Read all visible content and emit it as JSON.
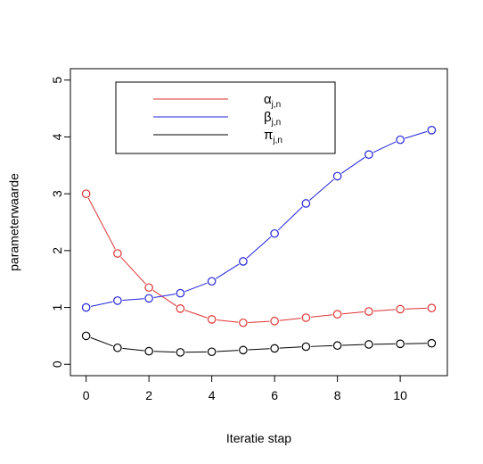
{
  "chart_data": {
    "type": "line",
    "xlabel": "Iteratie stap",
    "ylabel": "parameterwaarde",
    "xlim": [
      -0.5,
      11.5
    ],
    "ylim": [
      -0.2,
      5.2
    ],
    "x_ticks": [
      0,
      2,
      4,
      6,
      8,
      10
    ],
    "y_ticks": [
      0,
      1,
      2,
      3,
      4,
      5
    ],
    "x": [
      0,
      1,
      2,
      3,
      4,
      5,
      6,
      7,
      8,
      9,
      10,
      11
    ],
    "series": [
      {
        "name": "α",
        "subscript": "j,n",
        "color": "#dd3333",
        "values": [
          3.0,
          1.95,
          1.35,
          0.98,
          0.79,
          0.73,
          0.76,
          0.82,
          0.88,
          0.93,
          0.97,
          0.99
        ]
      },
      {
        "name": "β",
        "subscript": "j,n",
        "color": "#2222dd",
        "values": [
          1.0,
          1.12,
          1.16,
          1.25,
          1.46,
          1.81,
          2.3,
          2.83,
          3.31,
          3.69,
          3.95,
          4.12
        ]
      },
      {
        "name": "π",
        "subscript": "j,n",
        "color": "#000000",
        "values": [
          0.5,
          0.29,
          0.23,
          0.21,
          0.22,
          0.25,
          0.28,
          0.31,
          0.33,
          0.35,
          0.36,
          0.37
        ]
      }
    ],
    "legend_position": "top-left",
    "grid": false
  }
}
